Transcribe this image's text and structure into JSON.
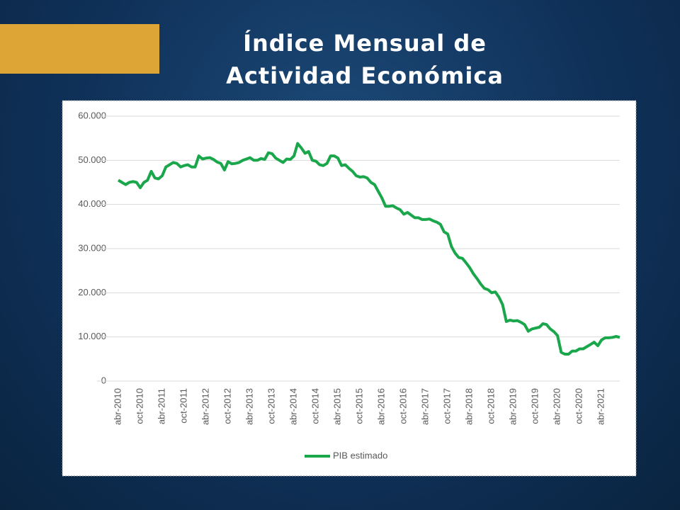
{
  "chart_data": {
    "type": "line",
    "title": "Índice Mensual de Actividad Económica",
    "categories": [
      "abr-2010",
      null,
      null,
      null,
      null,
      null,
      "oct-2010",
      null,
      null,
      null,
      null,
      null,
      "abr-2011",
      null,
      null,
      null,
      null,
      null,
      "oct-2011",
      null,
      null,
      null,
      null,
      null,
      "abr-2012",
      null,
      null,
      null,
      null,
      null,
      "oct-2012",
      null,
      null,
      null,
      null,
      null,
      "abr-2013",
      null,
      null,
      null,
      null,
      null,
      "oct-2013",
      null,
      null,
      null,
      null,
      null,
      "abr-2014",
      null,
      null,
      null,
      null,
      null,
      "oct-2014",
      null,
      null,
      null,
      null,
      null,
      "abr-2015",
      null,
      null,
      null,
      null,
      null,
      "oct-2015",
      null,
      null,
      null,
      null,
      null,
      "abr-2016",
      null,
      null,
      null,
      null,
      null,
      "oct-2016",
      null,
      null,
      null,
      null,
      null,
      "abr-2017",
      null,
      null,
      null,
      null,
      null,
      "oct-2017",
      null,
      null,
      null,
      null,
      null,
      "abr-2018",
      null,
      null,
      null,
      null,
      null,
      "oct-2018",
      null,
      null,
      null,
      null,
      null,
      "abr-2019",
      null,
      null,
      null,
      null,
      null,
      "oct-2019",
      null,
      null,
      null,
      null,
      null,
      "abr-2020",
      null,
      null,
      null,
      null,
      null,
      "oct-2020",
      null,
      null,
      null,
      null,
      null,
      "abr-2021",
      null,
      null,
      null,
      null,
      null
    ],
    "series": [
      {
        "name": "PIB estimado",
        "color": "#1aa64a",
        "values": [
          45500,
          45000,
          44500,
          45000,
          45200,
          45000,
          43800,
          45000,
          45500,
          47500,
          46000,
          45800,
          46500,
          48500,
          49000,
          49500,
          49300,
          48500,
          48800,
          49000,
          48500,
          48500,
          51000,
          50300,
          50500,
          50600,
          50200,
          49600,
          49300,
          47800,
          49700,
          49200,
          49300,
          49500,
          50000,
          50300,
          50600,
          50000,
          50000,
          50400,
          50200,
          51700,
          51500,
          50500,
          50000,
          49500,
          50300,
          50200,
          51000,
          53800,
          52800,
          51600,
          52000,
          50000,
          49800,
          49000,
          48800,
          49300,
          51000,
          51000,
          50500,
          48800,
          49000,
          48200,
          47500,
          46500,
          46200,
          46300,
          46000,
          45000,
          44500,
          43000,
          41500,
          39600,
          39600,
          39700,
          39200,
          38800,
          37800,
          38200,
          37600,
          37000,
          37000,
          36600,
          36600,
          36700,
          36300,
          36000,
          35500,
          33800,
          33300,
          30500,
          29000,
          28000,
          27800,
          26800,
          25700,
          24300,
          23200,
          22000,
          21000,
          20700,
          20000,
          20200,
          19000,
          17300,
          13500,
          13800,
          13600,
          13700,
          13300,
          12800,
          11300,
          11800,
          12000,
          12200,
          13000,
          12800,
          11800,
          11200,
          10300,
          6500,
          6100,
          6100,
          6800,
          6800,
          7300,
          7300,
          7800,
          8300,
          8800,
          8000,
          9300,
          9800,
          9800,
          9900,
          10100,
          9900
        ]
      }
    ],
    "ylim": [
      0,
      60000
    ],
    "yticks": [
      0,
      {
        "value": 10000,
        "label": "10.000"
      },
      {
        "value": 20000,
        "label": "20.000"
      },
      {
        "value": 30000,
        "label": "30.000"
      },
      {
        "value": 40000,
        "label": "40.000"
      },
      {
        "value": 50000,
        "label": "50.000"
      },
      {
        "value": 60000,
        "label": "60.000"
      }
    ],
    "grid": true,
    "legend": "bottom"
  }
}
